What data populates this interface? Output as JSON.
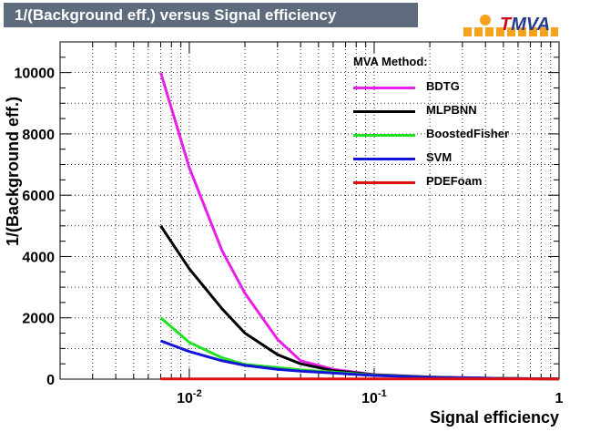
{
  "chart_data": {
    "type": "line",
    "title": "1/(Background eff.) versus Signal efficiency",
    "xlabel": "Signal efficiency",
    "ylabel": "1/(Background eff.)",
    "xscale": "log",
    "xlim": [
      0.002,
      1
    ],
    "ylim": [
      0,
      11000
    ],
    "grid": true,
    "x_tick_labels": [
      "10^{-2}",
      "10^{-1}",
      "1"
    ],
    "y_tick_labels": [
      "0",
      "2000",
      "4000",
      "6000",
      "8000",
      "10000"
    ],
    "y_ticks": [
      0,
      2000,
      4000,
      6000,
      8000,
      10000
    ],
    "legend_title": "MVA Method:",
    "legend_position": "top-right",
    "series": [
      {
        "name": "BDTG",
        "color": "#e81fe8",
        "x": [
          0.007,
          0.01,
          0.015,
          0.02,
          0.03,
          0.04,
          0.06,
          0.1,
          0.2,
          0.5,
          1.0
        ],
        "y": [
          10000,
          6900,
          4200,
          2800,
          1300,
          600,
          320,
          150,
          70,
          25,
          12
        ]
      },
      {
        "name": "MLPBNN",
        "color": "#000000",
        "x": [
          0.007,
          0.01,
          0.015,
          0.02,
          0.03,
          0.04,
          0.06,
          0.1,
          0.2,
          0.5,
          1.0
        ],
        "y": [
          5000,
          3600,
          2300,
          1500,
          800,
          500,
          280,
          140,
          65,
          22,
          10
        ]
      },
      {
        "name": "BoostedFisher",
        "color": "#22e022",
        "x": [
          0.007,
          0.01,
          0.015,
          0.02,
          0.03,
          0.04,
          0.06,
          0.1,
          0.2,
          0.5,
          1.0
        ],
        "y": [
          2000,
          1200,
          700,
          480,
          380,
          300,
          230,
          130,
          60,
          20,
          10
        ]
      },
      {
        "name": "SVM",
        "color": "#1414d8",
        "x": [
          0.007,
          0.01,
          0.015,
          0.02,
          0.03,
          0.04,
          0.06,
          0.1,
          0.2,
          0.5,
          1.0
        ],
        "y": [
          1250,
          900,
          600,
          450,
          320,
          260,
          200,
          120,
          55,
          18,
          9
        ]
      },
      {
        "name": "PDEFoam",
        "color": "#e01010",
        "x": [
          0.007,
          0.01,
          0.1,
          1.0
        ],
        "y": [
          5,
          5,
          5,
          5
        ]
      }
    ]
  },
  "logo": {
    "prefix": "T",
    "rest": "MVA"
  }
}
